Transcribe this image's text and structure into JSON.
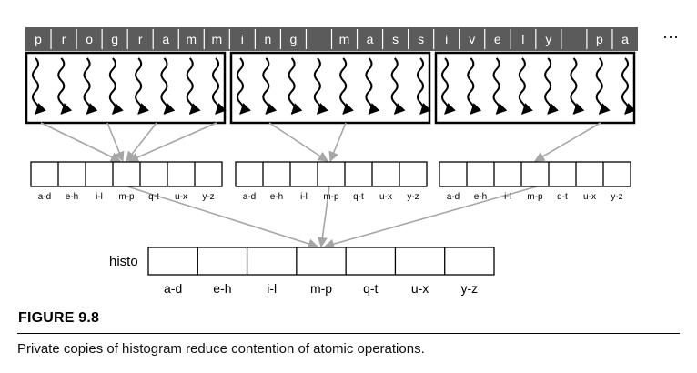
{
  "input_sequence": [
    "p",
    "r",
    "o",
    "g",
    "r",
    "a",
    "m",
    "m",
    "i",
    "n",
    "g",
    "",
    "m",
    "a",
    "s",
    "s",
    "i",
    "v",
    "e",
    "l",
    "y",
    "",
    "p",
    "a"
  ],
  "ellipsis": "···",
  "private_bin_labels": [
    "a-d",
    "e-h",
    "i-l",
    "m-p",
    "q-t",
    "u-x",
    "y-z"
  ],
  "histogram_label": "histo",
  "histogram_bin_labels": [
    "a-d",
    "e-h",
    "i-l",
    "m-p",
    "q-t",
    "u-x",
    "y-z"
  ],
  "figure": {
    "label": "FIGURE 9.8",
    "caption": "Private copies of histogram reduce contention of atomic operations."
  },
  "colors": {
    "input_bar": "#5b5b5b",
    "input_text": "#ffffff",
    "arrow": "#a6a6a6",
    "box": "#000000"
  }
}
